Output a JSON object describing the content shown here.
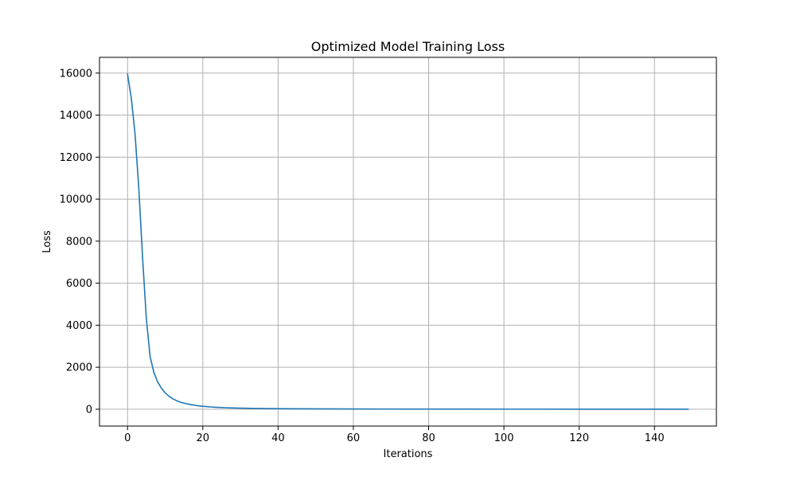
{
  "chart_data": {
    "type": "line",
    "title": "Optimized Model Training Loss",
    "xlabel": "Iterations",
    "ylabel": "Loss",
    "xlim": [
      -7.45,
      156.45
    ],
    "ylim": [
      -800,
      16750
    ],
    "xticks": [
      0,
      20,
      40,
      60,
      80,
      100,
      120,
      140
    ],
    "yticks": [
      0,
      2000,
      4000,
      6000,
      8000,
      10000,
      12000,
      14000,
      16000
    ],
    "grid": true,
    "line_color": "#1f77b4",
    "series": [
      {
        "x": [
          0,
          1,
          2,
          3,
          4,
          5,
          6,
          7,
          8,
          9,
          10,
          11,
          12,
          13,
          14,
          15,
          16,
          17,
          18,
          19,
          20,
          22,
          24,
          26,
          28,
          30,
          35,
          40,
          45,
          50,
          60,
          70,
          80,
          90,
          100,
          110,
          120,
          130,
          140,
          149
        ],
        "y": [
          15950,
          14800,
          13100,
          10500,
          7200,
          4300,
          2500,
          1750,
          1300,
          1000,
          780,
          620,
          500,
          410,
          340,
          290,
          250,
          215,
          185,
          160,
          140,
          110,
          88,
          72,
          60,
          50,
          36,
          28,
          22,
          18,
          13,
          10,
          8,
          7,
          6,
          5,
          4.5,
          4,
          3.5,
          3
        ]
      }
    ]
  }
}
